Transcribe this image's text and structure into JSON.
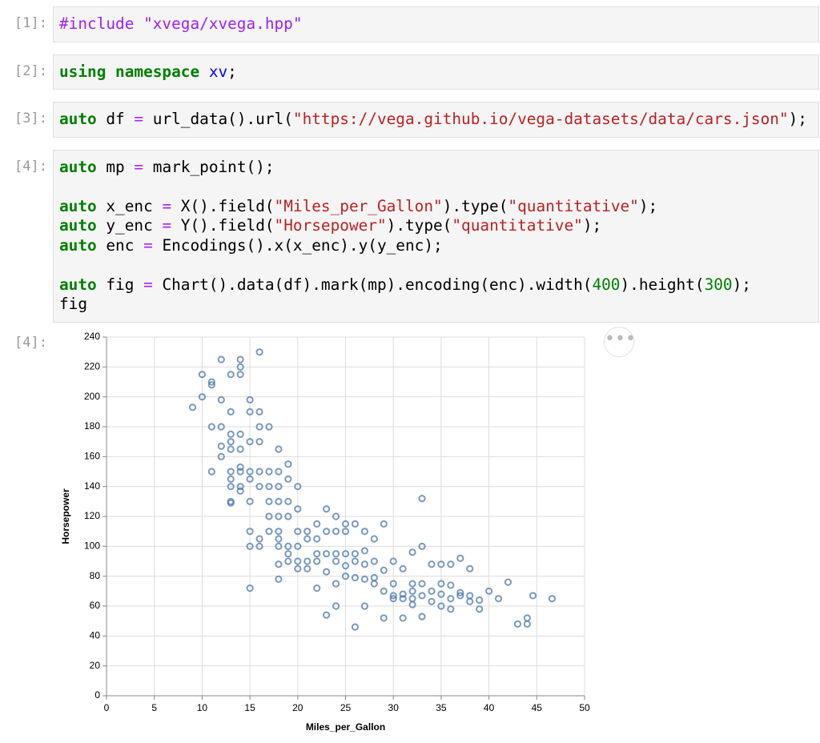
{
  "cells": [
    {
      "prompt": "[1]:",
      "lines": [
        [
          {
            "text": "#include \"xvega/xvega.hpp\"",
            "color": "#a020f0"
          }
        ]
      ]
    },
    {
      "prompt": "[2]:",
      "lines": [
        [
          {
            "text": "using namespace",
            "color": "#008000",
            "bold": true
          },
          {
            "text": " "
          },
          {
            "text": "xv",
            "color": "#0000ff"
          },
          {
            "text": ";"
          }
        ]
      ]
    },
    {
      "prompt": "[3]:",
      "lines": [
        [
          {
            "text": "auto",
            "color": "#008000",
            "bold": true
          },
          {
            "text": " df "
          },
          {
            "text": "=",
            "color": "#aa22ff"
          },
          {
            "text": " url_data().url("
          },
          {
            "text": "\"https://vega.github.io/vega-datasets/data/cars.json\"",
            "color": "#ba2121"
          },
          {
            "text": ");"
          }
        ]
      ]
    },
    {
      "prompt": "[4]:",
      "lines": [
        [
          {
            "text": "auto",
            "color": "#008000",
            "bold": true
          },
          {
            "text": " mp "
          },
          {
            "text": "=",
            "color": "#aa22ff"
          },
          {
            "text": " mark_point();"
          }
        ],
        [],
        [
          {
            "text": "auto",
            "color": "#008000",
            "bold": true
          },
          {
            "text": " x_enc "
          },
          {
            "text": "=",
            "color": "#aa22ff"
          },
          {
            "text": " X().field("
          },
          {
            "text": "\"Miles_per_Gallon\"",
            "color": "#ba2121"
          },
          {
            "text": ").type("
          },
          {
            "text": "\"quantitative\"",
            "color": "#ba2121"
          },
          {
            "text": ");"
          }
        ],
        [
          {
            "text": "auto",
            "color": "#008000",
            "bold": true
          },
          {
            "text": " y_enc "
          },
          {
            "text": "=",
            "color": "#aa22ff"
          },
          {
            "text": " Y().field("
          },
          {
            "text": "\"Horsepower\"",
            "color": "#ba2121"
          },
          {
            "text": ").type("
          },
          {
            "text": "\"quantitative\"",
            "color": "#ba2121"
          },
          {
            "text": ");"
          }
        ],
        [
          {
            "text": "auto",
            "color": "#008000",
            "bold": true
          },
          {
            "text": " enc "
          },
          {
            "text": "=",
            "color": "#aa22ff"
          },
          {
            "text": " Encodings().x(x_enc).y(y_enc);"
          }
        ],
        [],
        [
          {
            "text": "auto",
            "color": "#008000",
            "bold": true
          },
          {
            "text": " fig "
          },
          {
            "text": "=",
            "color": "#aa22ff"
          },
          {
            "text": " Chart().data(df).mark(mp).encoding(enc).width("
          },
          {
            "text": "400",
            "color": "#008000"
          },
          {
            "text": ").height("
          },
          {
            "text": "300",
            "color": "#008000"
          },
          {
            "text": ");"
          }
        ],
        [
          {
            "text": "fig"
          }
        ]
      ]
    }
  ],
  "output": {
    "prompt": "[4]:"
  },
  "chart_data": {
    "type": "scatter",
    "x_label": "Miles_per_Gallon",
    "y_label": "Horsepower",
    "color": "#4c78a8",
    "grid": true,
    "xlim": [
      0,
      50
    ],
    "xticks": [
      0,
      5,
      10,
      15,
      20,
      25,
      30,
      35,
      40,
      45,
      50
    ],
    "ylim": [
      0,
      240
    ],
    "yticks": [
      0,
      20,
      40,
      60,
      80,
      100,
      120,
      140,
      160,
      180,
      200,
      220,
      240
    ],
    "x": [
      9,
      10,
      10,
      11,
      11,
      11,
      12,
      12,
      12,
      11,
      12,
      12,
      13,
      13,
      13,
      13,
      13,
      13,
      13,
      13,
      13,
      13,
      14,
      14,
      14,
      14,
      14,
      14,
      14,
      14,
      14,
      15,
      15,
      15,
      15,
      15,
      15,
      15,
      15,
      15,
      16,
      16,
      16,
      16,
      16,
      16,
      16,
      16,
      17,
      17,
      17,
      17,
      17,
      17,
      18,
      18,
      18,
      18,
      18,
      18,
      18,
      18,
      18,
      18,
      19,
      19,
      19,
      19,
      19,
      19,
      19,
      20,
      20,
      20,
      20,
      20,
      20,
      21,
      21,
      21,
      21,
      22,
      22,
      22,
      22,
      22,
      23,
      23,
      23,
      23,
      23,
      24,
      24,
      24,
      24,
      24,
      24,
      25,
      25,
      25,
      25,
      25,
      26,
      26,
      26,
      26,
      26,
      27,
      27,
      27,
      27,
      27,
      28,
      28,
      28,
      28,
      29,
      29,
      29,
      29,
      30,
      30,
      30,
      30,
      31,
      31,
      31,
      31,
      32,
      32,
      32,
      32,
      32,
      33,
      33,
      33,
      33,
      33,
      34,
      34,
      34,
      35,
      35,
      35,
      35,
      36,
      36,
      36,
      36,
      37,
      37,
      37,
      38,
      38,
      38,
      39,
      39,
      40,
      41,
      42,
      43,
      44,
      44,
      44.6,
      46.6
    ],
    "y": [
      193,
      215,
      200,
      210,
      208,
      180,
      225,
      198,
      180,
      150,
      167,
      160,
      215,
      190,
      175,
      170,
      165,
      150,
      145,
      140,
      130,
      129,
      225,
      220,
      215,
      175,
      165,
      153,
      150,
      137,
      140,
      198,
      190,
      170,
      150,
      145,
      130,
      110,
      100,
      72,
      230,
      190,
      180,
      170,
      150,
      140,
      105,
      100,
      180,
      150,
      140,
      130,
      120,
      110,
      165,
      150,
      140,
      130,
      120,
      110,
      105,
      100,
      88,
      78,
      155,
      145,
      130,
      120,
      100,
      95,
      90,
      140,
      125,
      110,
      100,
      90,
      85,
      110,
      105,
      90,
      85,
      115,
      105,
      95,
      90,
      72,
      125,
      110,
      95,
      83,
      54,
      120,
      110,
      95,
      90,
      75,
      60,
      115,
      110,
      95,
      87,
      80,
      115,
      95,
      90,
      79,
      46,
      110,
      97,
      88,
      78,
      60,
      105,
      90,
      79,
      75,
      115,
      84,
      70,
      52,
      90,
      75,
      67,
      65,
      85,
      68,
      65,
      52,
      96,
      75,
      70,
      65,
      61,
      132,
      100,
      75,
      67,
      53,
      88,
      70,
      63,
      88,
      75,
      68,
      60,
      88,
      74,
      65,
      58,
      92,
      69,
      67,
      85,
      67,
      63,
      58,
      64,
      70,
      65,
      76,
      48,
      52,
      48,
      67,
      65
    ]
  }
}
